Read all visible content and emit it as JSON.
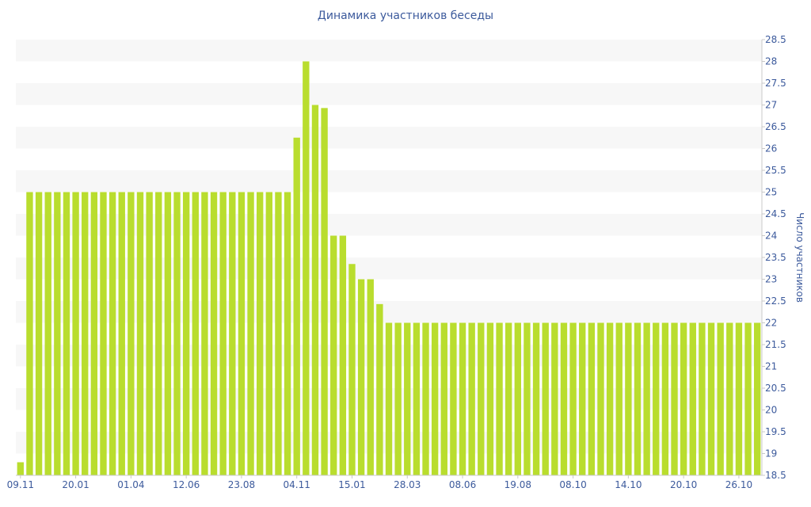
{
  "chart_data": {
    "type": "bar",
    "title": "Динамика участников беседы",
    "xlabel": "",
    "ylabel": "Число участников",
    "ylim": [
      18.5,
      28.5
    ],
    "y_ticks": [
      "18.5",
      "19",
      "19.5",
      "20",
      "20.5",
      "21",
      "21.5",
      "22",
      "22.5",
      "23",
      "23.5",
      "24",
      "24.5",
      "25",
      "25.5",
      "26",
      "26.5",
      "27",
      "27.5",
      "28",
      "28.5"
    ],
    "x_tick_labels": [
      {
        "index": 0,
        "label": "09.11"
      },
      {
        "index": 6,
        "label": "20.01"
      },
      {
        "index": 12,
        "label": "01.04"
      },
      {
        "index": 18,
        "label": "12.06"
      },
      {
        "index": 24,
        "label": "23.08"
      },
      {
        "index": 30,
        "label": "04.11"
      },
      {
        "index": 36,
        "label": "15.01"
      },
      {
        "index": 42,
        "label": "28.03"
      },
      {
        "index": 48,
        "label": "08.06"
      },
      {
        "index": 54,
        "label": "19.08"
      },
      {
        "index": 60,
        "label": "08.10"
      },
      {
        "index": 66,
        "label": "14.10"
      },
      {
        "index": 72,
        "label": "20.10"
      },
      {
        "index": 78,
        "label": "26.10"
      }
    ],
    "grid": true,
    "bar_color": "#b9dd2e",
    "band_color": "#f7f7f7",
    "text_color": "#3c5a9c",
    "values": [
      18.8,
      25,
      25,
      25,
      25,
      25,
      25,
      25,
      25,
      25,
      25,
      25,
      25,
      25,
      25,
      25,
      25,
      25,
      25,
      25,
      25,
      25,
      25,
      25,
      25,
      25,
      25,
      25,
      25,
      25,
      26.25,
      28,
      27,
      26.93,
      24,
      24,
      23.35,
      23,
      23,
      22.43,
      22,
      22,
      22,
      22,
      22,
      22,
      22,
      22,
      22,
      22,
      22,
      22,
      22,
      22,
      22,
      22,
      22,
      22,
      22,
      22,
      22,
      22,
      22,
      22,
      22,
      22,
      22,
      22,
      22,
      22,
      22,
      22,
      22,
      22,
      22,
      22,
      22,
      22,
      22,
      22,
      22
    ]
  }
}
